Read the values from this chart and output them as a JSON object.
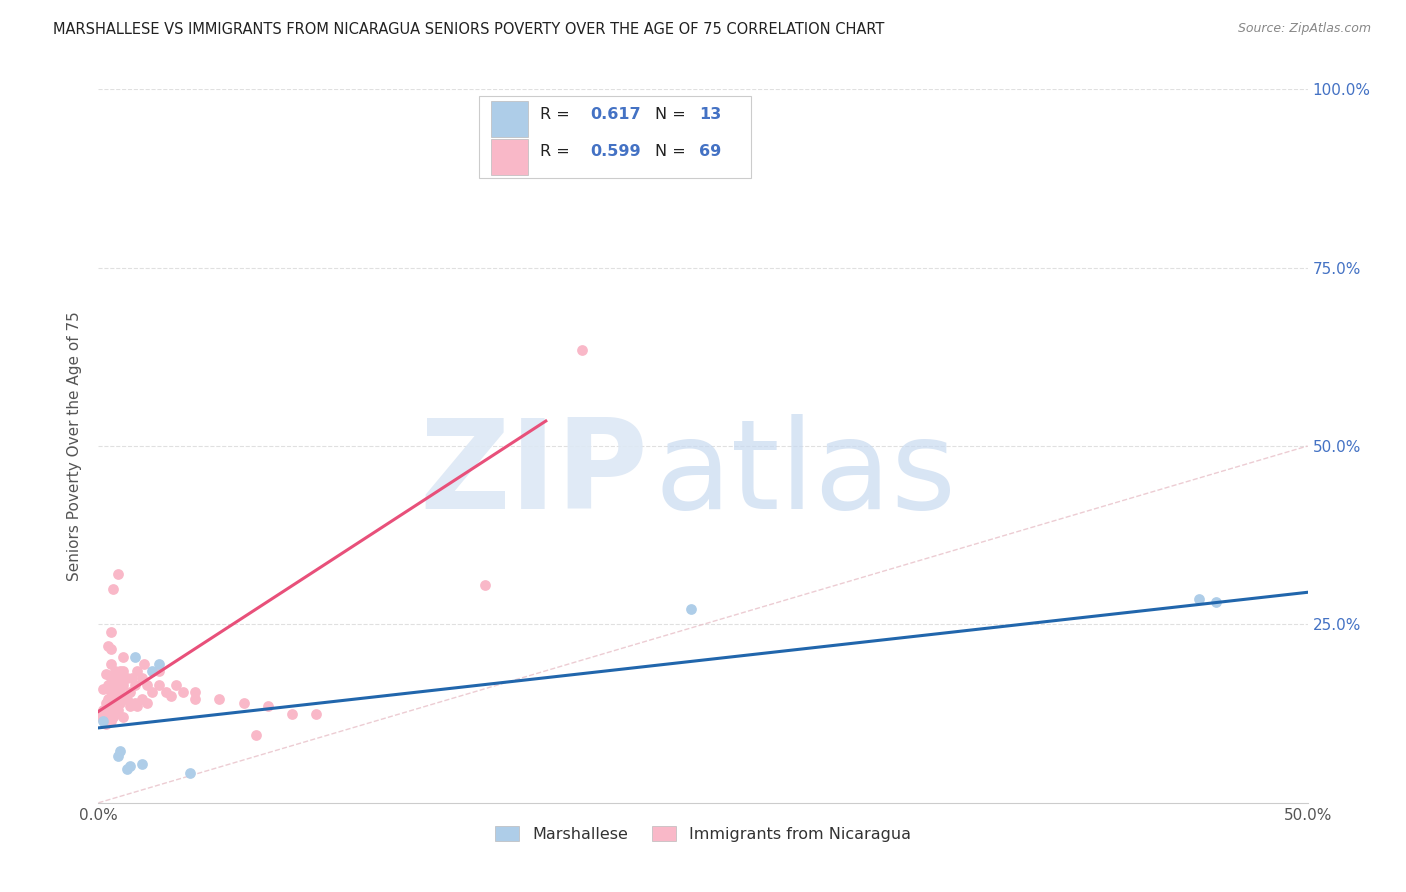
{
  "title": "MARSHALLESE VS IMMIGRANTS FROM NICARAGUA SENIORS POVERTY OVER THE AGE OF 75 CORRELATION CHART",
  "source": "Source: ZipAtlas.com",
  "ylabel": "Seniors Poverty Over the Age of 75",
  "xlim": [
    0.0,
    0.5
  ],
  "ylim": [
    0.0,
    1.0
  ],
  "watermark_zip": "ZIP",
  "watermark_atlas": "atlas",
  "blue_color": "#aecde8",
  "pink_color": "#f9b8c8",
  "blue_scatter_edge": "#aecde8",
  "pink_scatter_edge": "#f9b8c8",
  "blue_line_color": "#2166ac",
  "pink_line_color": "#e8507a",
  "diagonal_color": "#cccccc",
  "grid_color": "#e0e0e0",
  "marshallese_x": [
    0.002,
    0.008,
    0.009,
    0.012,
    0.013,
    0.015,
    0.018,
    0.022,
    0.025,
    0.038,
    0.245,
    0.455,
    0.462
  ],
  "marshallese_y": [
    0.115,
    0.065,
    0.072,
    0.048,
    0.052,
    0.205,
    0.055,
    0.185,
    0.195,
    0.042,
    0.272,
    0.285,
    0.282
  ],
  "nicaragua_x": [
    0.001,
    0.002,
    0.002,
    0.003,
    0.003,
    0.003,
    0.004,
    0.004,
    0.004,
    0.004,
    0.005,
    0.005,
    0.005,
    0.005,
    0.005,
    0.005,
    0.005,
    0.006,
    0.006,
    0.006,
    0.006,
    0.006,
    0.007,
    0.007,
    0.007,
    0.007,
    0.008,
    0.008,
    0.008,
    0.008,
    0.009,
    0.009,
    0.009,
    0.01,
    0.01,
    0.01,
    0.01,
    0.01,
    0.012,
    0.012,
    0.013,
    0.013,
    0.014,
    0.015,
    0.015,
    0.016,
    0.016,
    0.018,
    0.018,
    0.019,
    0.02,
    0.02,
    0.022,
    0.025,
    0.025,
    0.028,
    0.03,
    0.032,
    0.035,
    0.04,
    0.04,
    0.05,
    0.06,
    0.065,
    0.07,
    0.08,
    0.09,
    0.16,
    0.2
  ],
  "nicaragua_y": [
    0.12,
    0.13,
    0.16,
    0.11,
    0.14,
    0.18,
    0.12,
    0.145,
    0.165,
    0.22,
    0.115,
    0.13,
    0.155,
    0.175,
    0.195,
    0.215,
    0.24,
    0.12,
    0.135,
    0.155,
    0.175,
    0.3,
    0.125,
    0.145,
    0.165,
    0.185,
    0.13,
    0.15,
    0.175,
    0.32,
    0.14,
    0.16,
    0.185,
    0.12,
    0.145,
    0.165,
    0.185,
    0.205,
    0.145,
    0.175,
    0.135,
    0.155,
    0.175,
    0.14,
    0.165,
    0.135,
    0.185,
    0.145,
    0.175,
    0.195,
    0.14,
    0.165,
    0.155,
    0.165,
    0.185,
    0.155,
    0.15,
    0.165,
    0.155,
    0.145,
    0.155,
    0.145,
    0.14,
    0.095,
    0.135,
    0.125,
    0.125,
    0.305,
    0.635
  ],
  "blue_line_x0": 0.0,
  "blue_line_x1": 0.5,
  "blue_line_y0": 0.105,
  "blue_line_y1": 0.295,
  "pink_line_x0": 0.0,
  "pink_line_x1": 0.185,
  "pink_line_y0": 0.128,
  "pink_line_y1": 0.535,
  "legend_r1": "R = ",
  "legend_v1": "0.617",
  "legend_n1_label": "N = ",
  "legend_n1_val": "13",
  "legend_r2": "R = ",
  "legend_v2": "0.599",
  "legend_n2_label": "N = ",
  "legend_n2_val": "69",
  "label_color": "#4472c4",
  "title_color": "#222222",
  "source_color": "#888888",
  "axis_label_color": "#555555"
}
